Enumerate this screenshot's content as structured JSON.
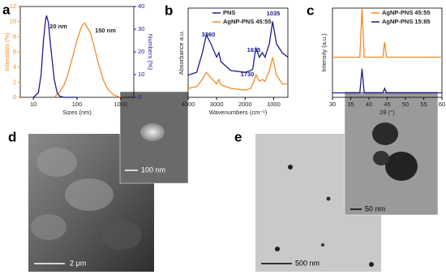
{
  "chart_data": [
    {
      "type": "line",
      "panel_label": "a",
      "xlabel": "Sizes (nm)",
      "ylabel": "Intensities (%)",
      "y2label": "Numbers (%)",
      "log_x": true,
      "xlim": [
        5,
        2000
      ],
      "xticks": [
        10,
        100,
        1000
      ],
      "ylim": [
        0,
        12
      ],
      "yticks": [
        0,
        2,
        4,
        6,
        8,
        10,
        12
      ],
      "y2lim": [
        0,
        40
      ],
      "y2ticks": [
        0,
        10,
        20,
        30,
        40
      ],
      "annotations": [
        "20 nm",
        "150 nm"
      ],
      "series": [
        {
          "name": null,
          "color": "#f28c28",
          "x": [
            30,
            40,
            50,
            60,
            80,
            100,
            130,
            150,
            200,
            250,
            300,
            400,
            500,
            700,
            1000
          ],
          "values": [
            0,
            0.7,
            1.6,
            2.8,
            5.4,
            7.6,
            9.5,
            9.8,
            8.6,
            6.6,
            4.7,
            2.3,
            1.1,
            0.3,
            0
          ]
        },
        {
          "name": null,
          "color": "#1c1c8f",
          "axis": "y2",
          "x": [
            10,
            13,
            15,
            17,
            19,
            20,
            22,
            25,
            30,
            35,
            40,
            50,
            100
          ],
          "values": [
            0,
            2,
            10,
            25,
            34,
            36,
            33,
            22,
            8,
            2,
            0.5,
            0,
            0
          ]
        }
      ]
    },
    {
      "type": "line",
      "panel_label": "b",
      "xlabel": "Wavenumbers (cm⁻¹)",
      "ylabel": "Absorbance a.u.",
      "xlim": [
        4000,
        500
      ],
      "xticks": [
        4000,
        3000,
        2000,
        1000
      ],
      "ylim": [
        0,
        1
      ],
      "annotations": [
        "3360",
        "1615",
        "1730",
        "1035"
      ],
      "x": [
        4000,
        3700,
        3500,
        3360,
        3200,
        3000,
        2920,
        2850,
        2500,
        2000,
        1800,
        1730,
        1650,
        1615,
        1500,
        1400,
        1300,
        1150,
        1035,
        900,
        700,
        500
      ],
      "series": [
        {
          "name": "PNS",
          "color": "#1c1c8f",
          "values": [
            0.25,
            0.28,
            0.5,
            0.7,
            0.6,
            0.45,
            0.5,
            0.4,
            0.3,
            0.28,
            0.3,
            0.32,
            0.5,
            0.55,
            0.45,
            0.5,
            0.45,
            0.6,
            0.85,
            0.6,
            0.5,
            0.45
          ]
        },
        {
          "name": "AgNP-PNS 45:55",
          "color": "#f28c28",
          "values": [
            0.1,
            0.12,
            0.2,
            0.28,
            0.22,
            0.15,
            0.2,
            0.14,
            0.1,
            0.08,
            0.1,
            0.15,
            0.22,
            0.25,
            0.18,
            0.2,
            0.18,
            0.3,
            0.45,
            0.25,
            0.15,
            0.15
          ]
        }
      ]
    },
    {
      "type": "line",
      "panel_label": "c",
      "xlabel": "2θ (°)",
      "ylabel": "Intensity (a.u.)",
      "xlim": [
        30,
        60
      ],
      "xticks": [
        30,
        35,
        40,
        45,
        50,
        55,
        60
      ],
      "ylim": [
        0,
        1
      ],
      "x": [
        30,
        37.5,
        38.1,
        38.7,
        43.8,
        44.3,
        44.8,
        60
      ],
      "series": [
        {
          "name": "AgNP-PNS 45:55",
          "color": "#f28c28",
          "values": [
            0.45,
            0.45,
            1.0,
            0.45,
            0.45,
            0.62,
            0.45,
            0.45
          ]
        },
        {
          "name": "AgNP-PNS 15:85",
          "color": "#1c1c8f",
          "values": [
            0.05,
            0.05,
            0.32,
            0.05,
            0.05,
            0.1,
            0.05,
            0.05
          ]
        }
      ]
    }
  ],
  "panels": {
    "d": {
      "label": "d",
      "scale_bar": "2 μm",
      "inset_scale_bar": "100 nm"
    },
    "e": {
      "label": "e",
      "scale_bar": "500 nm",
      "inset_scale_bar": "50 nm"
    }
  }
}
